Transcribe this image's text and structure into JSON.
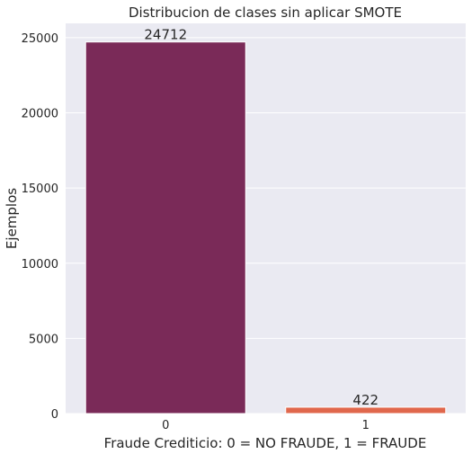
{
  "chart_data": {
    "type": "bar",
    "title": "Distribucion de clases sin aplicar SMOTE",
    "xlabel": "Fraude Crediticio: 0 = NO FRAUDE, 1 = FRAUDE",
    "ylabel": "Ejemplos",
    "categories": [
      "0",
      "1"
    ],
    "values": [
      24712,
      422
    ],
    "data_labels": [
      "24712",
      "422"
    ],
    "yticks": [
      0,
      5000,
      10000,
      15000,
      20000,
      25000
    ],
    "ytick_labels": [
      "0",
      "5000",
      "10000",
      "15000",
      "20000",
      "25000"
    ],
    "ylim": [
      0,
      25950
    ],
    "grid": true,
    "legend": "none",
    "colors": {
      "plot_background": "#EAEAF2",
      "grid": "#FFFFFF",
      "bars": [
        "#7A2A58",
        "#E0674C"
      ],
      "text": "#262626"
    }
  }
}
